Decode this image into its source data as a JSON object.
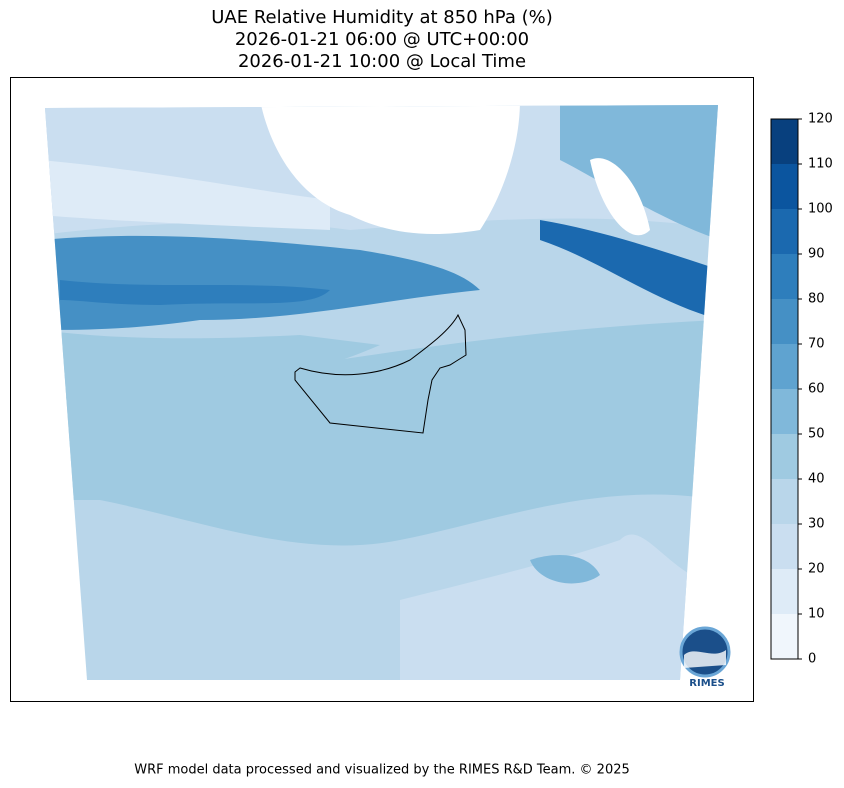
{
  "title": [
    "UAE Relative Humidity at 850 hPa (%)",
    "2026-01-21 06:00 @ UTC+00:00",
    "2026-01-21 10:00 @ Local Time"
  ],
  "colorbar": {
    "ticks": [
      0,
      10,
      20,
      30,
      40,
      50,
      60,
      70,
      80,
      90,
      100,
      110,
      120
    ],
    "colors": [
      "#f0f6fc",
      "#deebf7",
      "#cadef0",
      "#b9d6ea",
      "#9fcae1",
      "#80b8da",
      "#5fa3d0",
      "#4590c5",
      "#2e7ebc",
      "#1b69af",
      "#0b559f",
      "#08407e"
    ]
  },
  "logo": "RIMES",
  "footer": "WRF model data processed and visualized by the RIMES R&D Team. © 2025"
}
